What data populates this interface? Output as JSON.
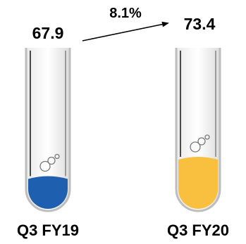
{
  "chart_data": {
    "type": "bar",
    "categories": [
      "Q3 FY19",
      "Q3 FY20"
    ],
    "values": [
      67.9,
      73.4
    ],
    "value_labels": [
      "67.9",
      "73.4"
    ],
    "change_label": "8.1%",
    "colors": [
      "#1f5fb0",
      "#f9bf3f"
    ]
  }
}
